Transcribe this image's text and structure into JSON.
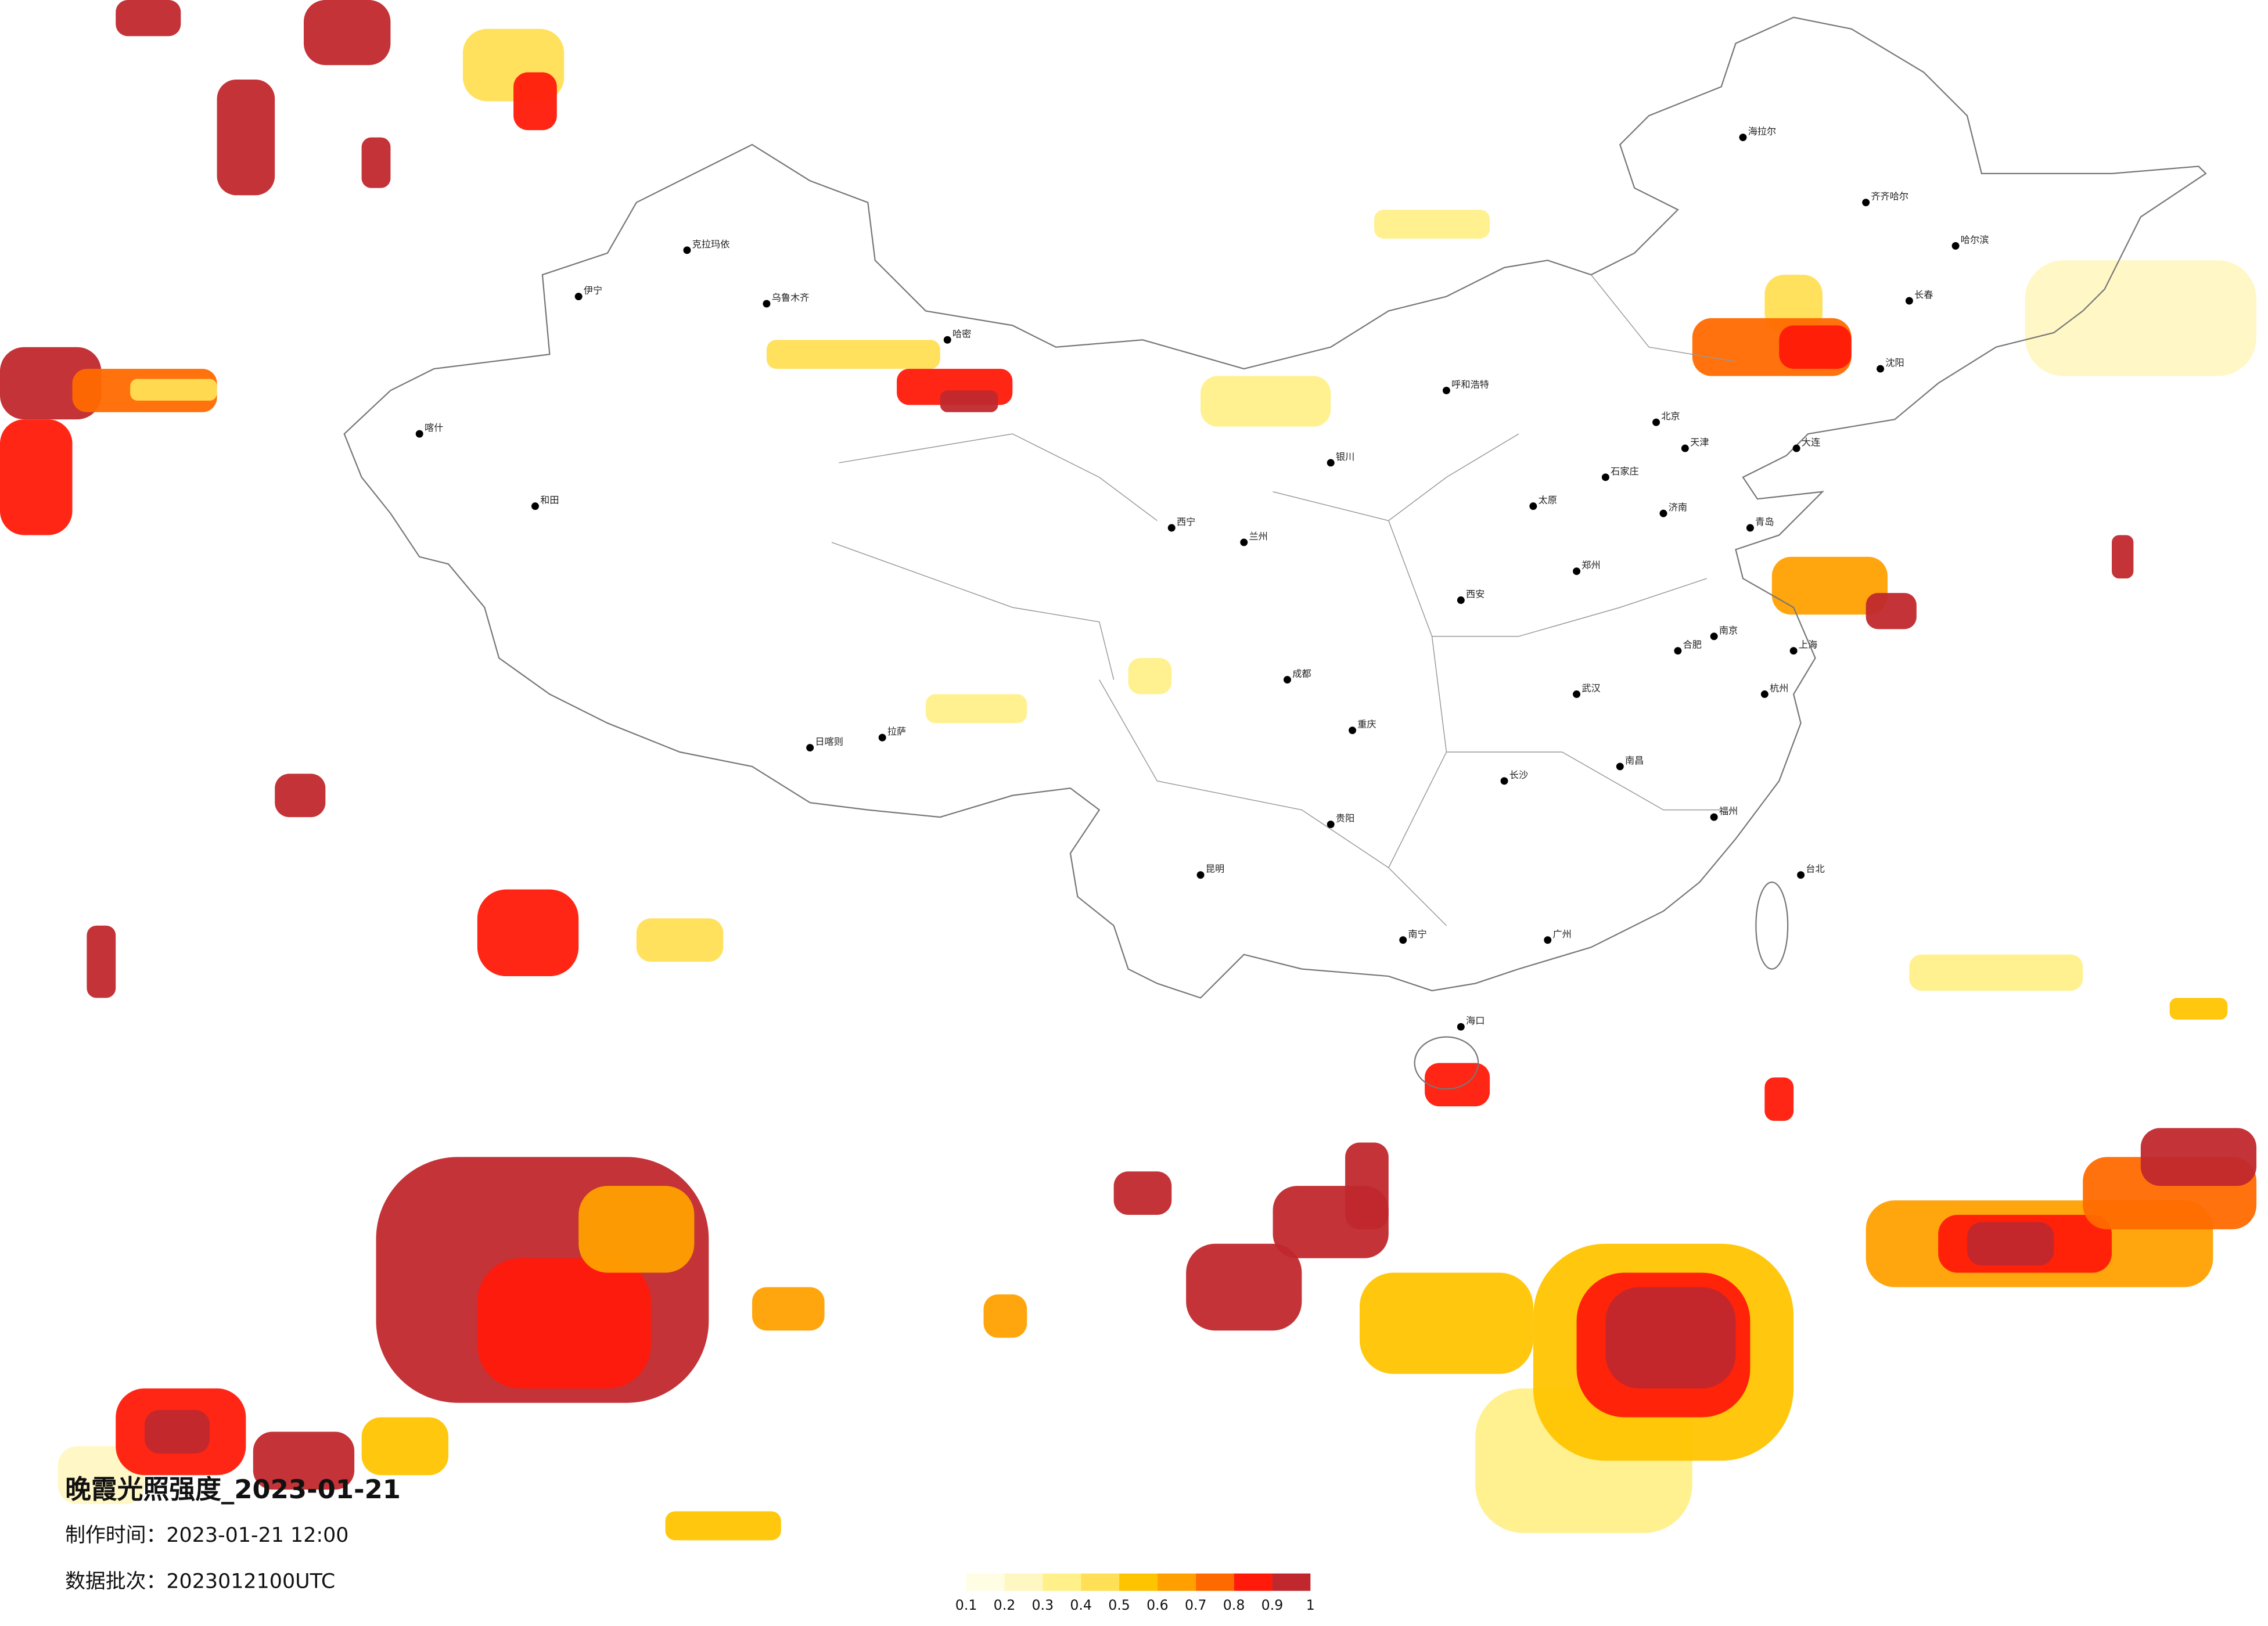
{
  "title": "晚霞光照强度_2023-01-21",
  "production_time": "制作时间：2023-01-21 12:00",
  "batch": "数据批次：2023012100UTC",
  "legend": {
    "ticks": [
      0.1,
      0.2,
      0.3,
      0.4,
      0.5,
      0.6,
      0.7,
      0.8,
      0.9,
      1
    ],
    "colors": [
      "#fffde3",
      "#fff7c2",
      "#fff08a",
      "#ffdf55",
      "#ffc400",
      "#ffa000",
      "#ff6a00",
      "#ff1a0a",
      "#c0282d"
    ]
  },
  "cities": [
    "海拉尔",
    "齐齐哈尔",
    "哈尔滨",
    "长春",
    "沈阳",
    "北京",
    "天津",
    "石家庄",
    "太原",
    "呼和浩特",
    "济南",
    "郑州",
    "西安",
    "兰州",
    "西宁",
    "银川",
    "乌鲁木齐",
    "伊宁",
    "喀什",
    "和田",
    "拉萨",
    "日喀则",
    "成都",
    "重庆",
    "昆明",
    "贵阳",
    "南宁",
    "广州",
    "海口",
    "长沙",
    "武汉",
    "南昌",
    "合肥",
    "南京",
    "上海",
    "杭州",
    "福州",
    "台北",
    "青岛",
    "大连",
    "哈密",
    "克拉玛依"
  ]
}
